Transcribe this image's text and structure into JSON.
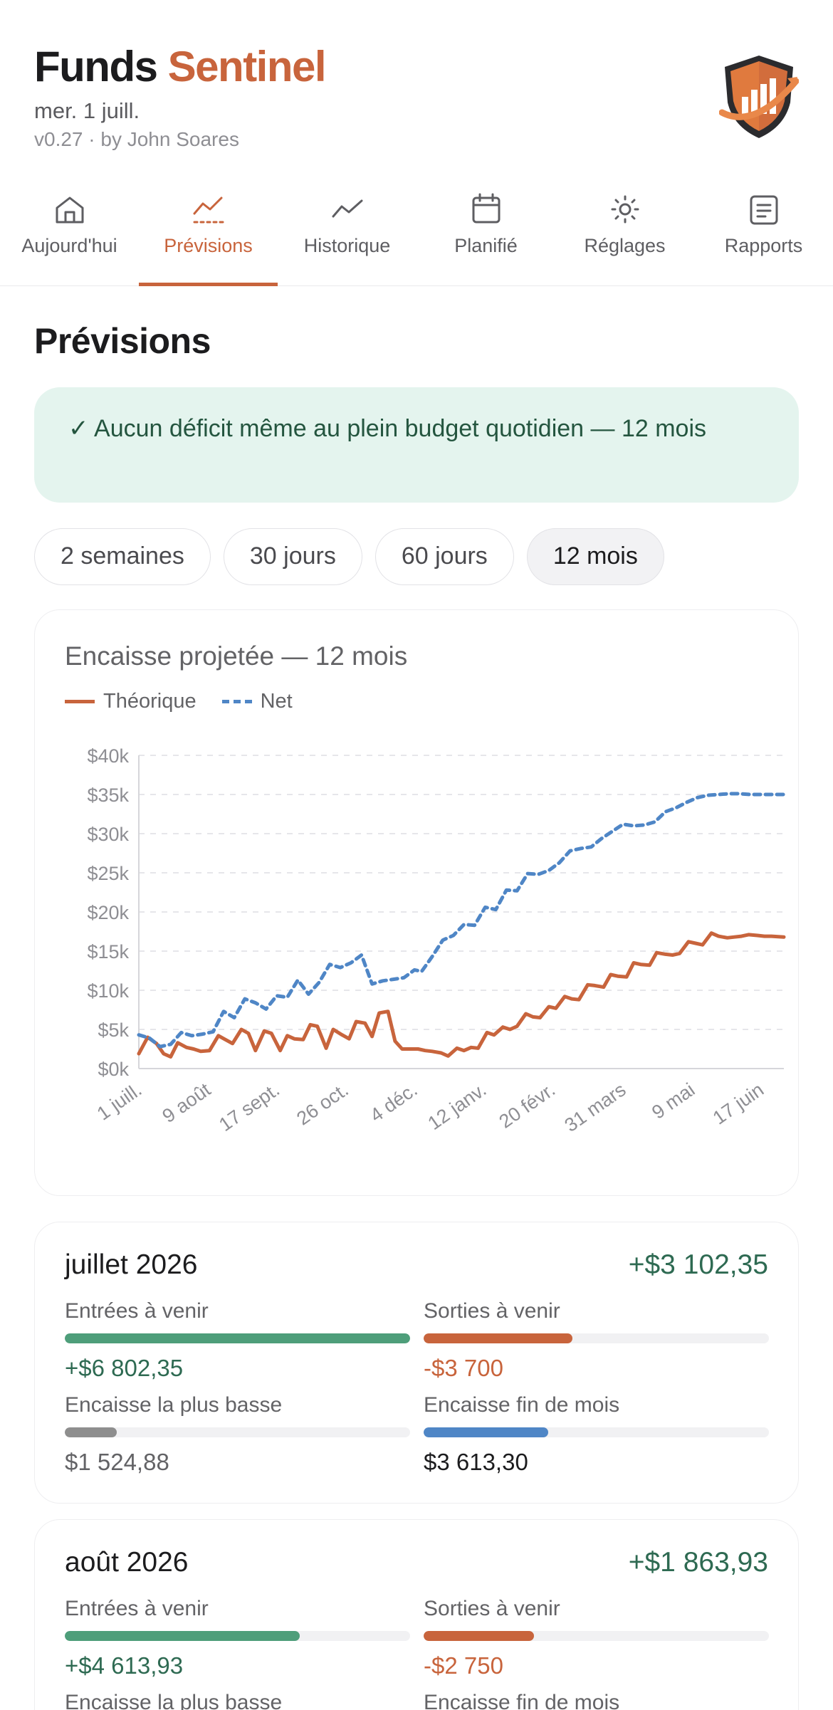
{
  "app": {
    "title_part1": "Funds",
    "title_part2": "Sentinel",
    "date": "mer. 1 juill.",
    "version": "v0.27 · by John Soares",
    "logo_icon": "shield-chart-logo"
  },
  "nav": [
    {
      "label": "Aujourd'hui",
      "icon": "home-icon",
      "active": false
    },
    {
      "label": "Prévisions",
      "icon": "trend-forecast-icon",
      "active": true
    },
    {
      "label": "Historique",
      "icon": "line-chart-icon",
      "active": false
    },
    {
      "label": "Planifié",
      "icon": "calendar-icon",
      "active": false
    },
    {
      "label": "Réglages",
      "icon": "gear-icon",
      "active": false
    },
    {
      "label": "Rapports",
      "icon": "document-icon",
      "active": false
    }
  ],
  "page_title": "Prévisions",
  "banner": "✓ Aucun déficit même au plein budget quotidien — 12 mois",
  "ranges": [
    {
      "label": "2 semaines",
      "active": false
    },
    {
      "label": "30 jours",
      "active": false
    },
    {
      "label": "60 jours",
      "active": false
    },
    {
      "label": "12 mois",
      "active": true
    }
  ],
  "colors": {
    "accent": "#c8643c",
    "theorique": "#c8643c",
    "net": "#4f86c6",
    "positive": "#2e6a52",
    "banner_bg": "#e4f4ee"
  },
  "chart_data": {
    "type": "line",
    "title": "Encaisse projetée — 12 mois",
    "legend_placement": "top-left",
    "grid": true,
    "ylim": [
      0,
      40000
    ],
    "y_ticks": [
      "$0k",
      "$5k",
      "$10k",
      "$15k",
      "$20k",
      "$25k",
      "$30k",
      "$35k",
      "$40k"
    ],
    "x_tick_labels": [
      "1 juill.",
      "9 août",
      "17 sept.",
      "26 oct.",
      "4 déc.",
      "12 janv.",
      "20 févr.",
      "31 mars",
      "9 mai",
      "17 juin"
    ],
    "x_tick_days": [
      0,
      39,
      78,
      117,
      156,
      195,
      234,
      274,
      313,
      352
    ],
    "x_range_days": [
      0,
      365
    ],
    "series": [
      {
        "name": "Théorique",
        "style": "solid",
        "x": [
          0,
          5,
          10,
          14,
          18,
          22,
          27,
          31,
          35,
          40,
          45,
          49,
          53,
          58,
          62,
          66,
          71,
          75,
          80,
          84,
          88,
          93,
          97,
          101,
          106,
          110,
          115,
          119,
          123,
          128,
          132,
          136,
          141,
          145,
          149,
          154,
          158,
          162,
          166,
          171,
          175,
          180,
          184,
          188,
          192,
          197,
          201,
          206,
          210,
          214,
          219,
          223,
          227,
          232,
          236,
          241,
          245,
          249,
          254,
          258,
          263,
          267,
          271,
          276,
          280,
          284,
          289,
          293,
          298,
          302,
          306,
          311,
          315,
          319,
          324,
          328,
          333,
          337,
          341,
          345,
          350,
          354,
          358,
          365
        ],
        "values": [
          1900,
          4000,
          3200,
          1900,
          1500,
          3300,
          2700,
          2500,
          2200,
          2300,
          4200,
          3700,
          3200,
          5000,
          4500,
          2300,
          4800,
          4500,
          2300,
          4200,
          3800,
          3700,
          5600,
          5400,
          2600,
          5000,
          4300,
          3800,
          6000,
          5800,
          4100,
          7100,
          7300,
          3500,
          2500,
          2500,
          2500,
          2300,
          2200,
          2000,
          1600,
          2600,
          2300,
          2700,
          2600,
          4600,
          4300,
          5300,
          5000,
          5400,
          7000,
          6600,
          6500,
          7900,
          7700,
          9200,
          8900,
          8800,
          10700,
          10600,
          10400,
          12000,
          11800,
          11700,
          13500,
          13300,
          13200,
          14800,
          14600,
          14500,
          14700,
          16200,
          16000,
          15800,
          17300,
          16900,
          16700,
          16800,
          16900,
          17100,
          17000,
          16900,
          16900,
          16800
        ]
      },
      {
        "name": "Net",
        "style": "dashed",
        "x": [
          0,
          6,
          12,
          18,
          24,
          30,
          36,
          42,
          48,
          54,
          60,
          66,
          72,
          78,
          84,
          90,
          96,
          102,
          108,
          114,
          120,
          126,
          132,
          138,
          144,
          150,
          156,
          160,
          166,
          172,
          178,
          184,
          190,
          196,
          202,
          208,
          214,
          220,
          226,
          232,
          238,
          244,
          250,
          256,
          262,
          268,
          274,
          280,
          286,
          292,
          298,
          304,
          310,
          316,
          322,
          328,
          334,
          340,
          346,
          352,
          358,
          365
        ],
        "values": [
          4300,
          3900,
          2800,
          3100,
          4600,
          4200,
          4400,
          4700,
          7300,
          6500,
          8900,
          8400,
          7600,
          9300,
          9100,
          11300,
          9500,
          11000,
          13300,
          12900,
          13500,
          14500,
          10800,
          11200,
          11400,
          11600,
          12600,
          12400,
          14300,
          16400,
          17000,
          18400,
          18300,
          20600,
          20300,
          22800,
          22700,
          24900,
          24800,
          25300,
          26300,
          27800,
          28100,
          28300,
          29400,
          30300,
          31200,
          31000,
          31100,
          31500,
          32800,
          33300,
          34000,
          34600,
          34900,
          35000,
          35100,
          35100,
          35000,
          35000,
          35000,
          35000
        ]
      }
    ]
  },
  "months": [
    {
      "month": "juillet 2026",
      "delta": "+$3 102,35",
      "metrics": [
        {
          "label": "Entrées à venir",
          "value": "+$6 802,35",
          "bar_fraction": 1.0,
          "color": "green"
        },
        {
          "label": "Sorties à venir",
          "value": "-$3 700",
          "bar_fraction": 0.43,
          "color": "orange"
        },
        {
          "label": "Encaisse la plus basse",
          "value": "$1 524,88",
          "bar_fraction": 0.15,
          "color": "gray"
        },
        {
          "label": "Encaisse fin de mois",
          "value": "$3 613,30",
          "bar_fraction": 0.36,
          "color": "blue"
        }
      ]
    },
    {
      "month": "août 2026",
      "delta": "+$1 863,93",
      "metrics": [
        {
          "label": "Entrées à venir",
          "value": "+$4 613,93",
          "bar_fraction": 0.68,
          "color": "green"
        },
        {
          "label": "Sorties à venir",
          "value": "-$2 750",
          "bar_fraction": 0.32,
          "color": "orange"
        },
        {
          "label": "Encaisse la plus basse",
          "value": "",
          "bar_fraction": 0,
          "color": "gray"
        },
        {
          "label": "Encaisse fin de mois",
          "value": "",
          "bar_fraction": 0,
          "color": "blue"
        }
      ]
    }
  ]
}
